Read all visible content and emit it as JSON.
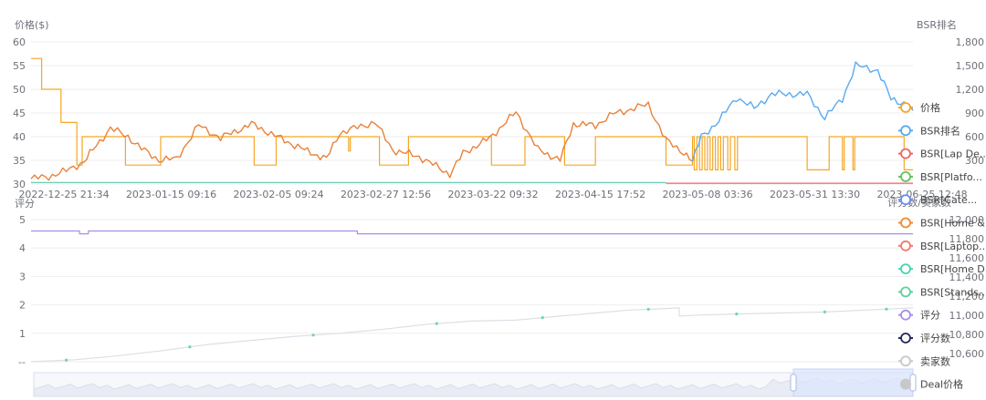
{
  "top_chart": {
    "left_axis_title": "价格($)",
    "right_axis_title": "BSR排名",
    "y_left_ticks": [
      "60",
      "55",
      "50",
      "45",
      "40",
      "35",
      "30"
    ],
    "y_right_ticks": [
      "1,800",
      "1,500",
      "1,200",
      "900",
      "600",
      "300"
    ],
    "x_ticks": [
      "2022-12-25 21:34",
      "2023-01-15 09:16",
      "2023-02-05 09:24",
      "2023-02-27 12:56",
      "2023-03-22 09:32",
      "2023-04-15 17:52",
      "2023-05-08 03:36",
      "2023-05-31 13:30",
      "2023-06-25 12:48"
    ]
  },
  "bottom_chart": {
    "left_axis_title": "评分",
    "right_axis_title": "评分数/卖家数",
    "y_left_ticks": [
      "5",
      "4",
      "3",
      "2",
      "1",
      "--"
    ],
    "y_right_ticks": [
      "12,000",
      "11,800",
      "11,600",
      "11,400",
      "11,200",
      "11,000",
      "10,800",
      "10,600"
    ]
  },
  "legend": [
    {
      "label": "价格",
      "color": "#f5a623",
      "style": "circle",
      "name": "legend-item-price"
    },
    {
      "label": "BSR排名",
      "color": "#5aaaf0",
      "style": "circle",
      "name": "legend-item-bsr-rank"
    },
    {
      "label": "BSR[Lap De...",
      "color": "#ee6666",
      "style": "circle",
      "name": "legend-item-bsr-lap-de"
    },
    {
      "label": "BSR[Platfo...",
      "color": "#5fc35f",
      "style": "circle",
      "name": "legend-item-bsr-platform"
    },
    {
      "label": "BSR[Cate...",
      "color": "#6a8ff0",
      "style": "circle",
      "name": "legend-item-bsr-cate"
    },
    {
      "label": "BSR[Home &...",
      "color": "#f08a2e",
      "style": "circle",
      "name": "legend-item-bsr-home-and"
    },
    {
      "label": "BSR[Laptop...",
      "color": "#f07a70",
      "style": "circle",
      "name": "legend-item-bsr-laptop"
    },
    {
      "label": "BSR[Home D...",
      "color": "#48d4b0",
      "style": "circle",
      "name": "legend-item-bsr-home-d"
    },
    {
      "label": "BSR[Stands...",
      "color": "#5ed0a0",
      "style": "circle",
      "name": "legend-item-bsr-stands"
    },
    {
      "label": "评分",
      "color": "#a98ee8",
      "style": "circle",
      "name": "legend-item-rating"
    },
    {
      "label": "评分数",
      "color": "#222a5c",
      "style": "circle",
      "name": "legend-item-rating-count"
    },
    {
      "label": "卖家数",
      "color": "#c8c8c8",
      "style": "circle",
      "name": "legend-item-seller-count"
    },
    {
      "label": "Deal价格",
      "color": "#c8c8c8",
      "style": "dot",
      "name": "legend-item-deal-price"
    }
  ],
  "colors": {
    "price": "#f5a623",
    "bsr_rank": "#5aaaf0",
    "bsr_home": "#e8823a",
    "bsr_lap_de": "#ee6666",
    "bsr_home_d": "#6fc9b6",
    "rating": "#a98ee8",
    "rating_count": "#dcdfe6",
    "grid": "#eeeeee",
    "axis_text": "#6e7079",
    "slider_fill": "#dbe5fb",
    "slider_border": "#c4d3f7"
  },
  "chart_data": [
    {
      "type": "line",
      "title": "",
      "ylabel": "价格($)",
      "y2label": "BSR排名",
      "ylim": [
        30,
        60
      ],
      "y2lim": [
        0,
        1800
      ],
      "x": [
        "2022-12-25 21:34",
        "2023-01-15 09:16",
        "2023-02-05 09:24",
        "2023-02-27 12:56",
        "2023-03-22 09:32",
        "2023-04-15 17:52",
        "2023-05-08 03:36",
        "2023-05-31 13:30",
        "2023-06-25 12:48"
      ],
      "series": [
        {
          "name": "价格",
          "axis": "left",
          "step": true,
          "points": [
            [
              0,
              56.5
            ],
            [
              0.012,
              56.5
            ],
            [
              0.012,
              50
            ],
            [
              0.034,
              50
            ],
            [
              0.034,
              43
            ],
            [
              0.052,
              43
            ],
            [
              0.052,
              34
            ],
            [
              0.058,
              34
            ],
            [
              0.058,
              40
            ],
            [
              0.107,
              40
            ],
            [
              0.107,
              34
            ],
            [
              0.147,
              34
            ],
            [
              0.147,
              40
            ],
            [
              0.253,
              40
            ],
            [
              0.253,
              34
            ],
            [
              0.278,
              34
            ],
            [
              0.278,
              40
            ],
            [
              0.36,
              40
            ],
            [
              0.36,
              37
            ],
            [
              0.362,
              37
            ],
            [
              0.362,
              40
            ],
            [
              0.395,
              40
            ],
            [
              0.395,
              34
            ],
            [
              0.428,
              34
            ],
            [
              0.428,
              40
            ],
            [
              0.522,
              40
            ],
            [
              0.522,
              34
            ],
            [
              0.56,
              34
            ],
            [
              0.56,
              40
            ],
            [
              0.605,
              40
            ],
            [
              0.605,
              34
            ],
            [
              0.64,
              34
            ],
            [
              0.64,
              40
            ],
            [
              0.72,
              40
            ],
            [
              0.72,
              34
            ],
            [
              0.75,
              34
            ],
            [
              0.75,
              40
            ],
            [
              0.752,
              40
            ],
            [
              0.752,
              33
            ],
            [
              0.755,
              33
            ],
            [
              0.755,
              40
            ],
            [
              0.758,
              40
            ],
            [
              0.758,
              33
            ],
            [
              0.761,
              33
            ],
            [
              0.761,
              40
            ],
            [
              0.764,
              40
            ],
            [
              0.764,
              33
            ],
            [
              0.767,
              33
            ],
            [
              0.767,
              40
            ],
            [
              0.77,
              40
            ],
            [
              0.77,
              33
            ],
            [
              0.773,
              33
            ],
            [
              0.773,
              40
            ],
            [
              0.776,
              40
            ],
            [
              0.776,
              33
            ],
            [
              0.779,
              33
            ],
            [
              0.779,
              40
            ],
            [
              0.782,
              40
            ],
            [
              0.782,
              33
            ],
            [
              0.785,
              33
            ],
            [
              0.785,
              40
            ],
            [
              0.79,
              40
            ],
            [
              0.79,
              33
            ],
            [
              0.793,
              33
            ],
            [
              0.793,
              40
            ],
            [
              0.798,
              40
            ],
            [
              0.798,
              33
            ],
            [
              0.801,
              33
            ],
            [
              0.801,
              40
            ],
            [
              0.88,
              40
            ],
            [
              0.88,
              33
            ],
            [
              0.905,
              33
            ],
            [
              0.905,
              40
            ],
            [
              0.92,
              40
            ],
            [
              0.92,
              33
            ],
            [
              0.922,
              33
            ],
            [
              0.922,
              40
            ],
            [
              0.932,
              40
            ],
            [
              0.932,
              33
            ],
            [
              0.934,
              33
            ],
            [
              0.934,
              40
            ],
            [
              0.99,
              40
            ],
            [
              0.99,
              33
            ],
            [
              1,
              33
            ]
          ]
        },
        {
          "name": "BSR[Home &...",
          "axis": "right",
          "points": [
            [
              0,
              68
            ],
            [
              0.02,
              96
            ],
            [
              0.04,
              168
            ],
            [
              0.06,
              282
            ],
            [
              0.07,
              432
            ],
            [
              0.09,
              708
            ],
            [
              0.11,
              600
            ],
            [
              0.125,
              450
            ],
            [
              0.145,
              306
            ],
            [
              0.165,
              318
            ],
            [
              0.19,
              744
            ],
            [
              0.215,
              582
            ],
            [
              0.25,
              762
            ],
            [
              0.28,
              594
            ],
            [
              0.31,
              432
            ],
            [
              0.335,
              318
            ],
            [
              0.35,
              648
            ],
            [
              0.39,
              786
            ],
            [
              0.41,
              432
            ],
            [
              0.44,
              348
            ],
            [
              0.475,
              126
            ],
            [
              0.49,
              390
            ],
            [
              0.52,
              582
            ],
            [
              0.55,
              912
            ],
            [
              0.575,
              432
            ],
            [
              0.6,
              306
            ],
            [
              0.615,
              762
            ],
            [
              0.64,
              744
            ],
            [
              0.66,
              888
            ],
            [
              0.7,
              1008
            ],
            [
              0.72,
              552
            ],
            [
              0.74,
              402
            ],
            [
              0.75,
              288
            ]
          ]
        },
        {
          "name": "BSR排名",
          "axis": "right",
          "points": [
            [
              0.75,
              288
            ],
            [
              0.76,
              600
            ],
            [
              0.78,
              800
            ],
            [
              0.8,
              1100
            ],
            [
              0.82,
              960
            ],
            [
              0.84,
              1140
            ],
            [
              0.86,
              1140
            ],
            [
              0.88,
              1140
            ],
            [
              0.9,
              840
            ],
            [
              0.92,
              1080
            ],
            [
              0.935,
              1500
            ],
            [
              0.96,
              1440
            ],
            [
              0.975,
              1080
            ],
            [
              0.99,
              1020
            ],
            [
              1,
              930
            ]
          ]
        },
        {
          "name": "BSR[Lap De...",
          "axis": "right",
          "points": [
            [
              0.72,
              10
            ],
            [
              1,
              10
            ]
          ]
        },
        {
          "name": "BSR[Home D...",
          "axis": "right",
          "points": [
            [
              0,
              18
            ],
            [
              0.72,
              18
            ]
          ]
        }
      ]
    },
    {
      "type": "line",
      "title": "",
      "ylabel": "评分",
      "y2label": "评分数/卖家数",
      "ylim": [
        0,
        5
      ],
      "y2lim": [
        10600,
        12000
      ],
      "series": [
        {
          "name": "评分",
          "axis": "left",
          "step": true,
          "points": [
            [
              0,
              4.6
            ],
            [
              0.055,
              4.6
            ],
            [
              0.055,
              4.5
            ],
            [
              0.065,
              4.5
            ],
            [
              0.065,
              4.6
            ],
            [
              0.37,
              4.6
            ],
            [
              0.37,
              4.5
            ],
            [
              1,
              4.5
            ]
          ]
        },
        {
          "name": "评分数",
          "axis": "right",
          "points": [
            [
              0,
              10600
            ],
            [
              0.05,
              10620
            ],
            [
              0.1,
              10660
            ],
            [
              0.15,
              10710
            ],
            [
              0.2,
              10770
            ],
            [
              0.25,
              10810
            ],
            [
              0.3,
              10850
            ],
            [
              0.35,
              10880
            ],
            [
              0.4,
              10920
            ],
            [
              0.45,
              10970
            ],
            [
              0.5,
              11000
            ],
            [
              0.55,
              11010
            ],
            [
              0.6,
              11050
            ],
            [
              0.64,
              11080
            ],
            [
              0.68,
              11110
            ],
            [
              0.71,
              11120
            ],
            [
              0.735,
              11130
            ],
            [
              0.735,
              11050
            ],
            [
              0.76,
              11060
            ],
            [
              0.8,
              11070
            ],
            [
              0.85,
              11080
            ],
            [
              0.9,
              11090
            ],
            [
              0.95,
              11110
            ],
            [
              1,
              11130
            ]
          ]
        }
      ]
    }
  ]
}
